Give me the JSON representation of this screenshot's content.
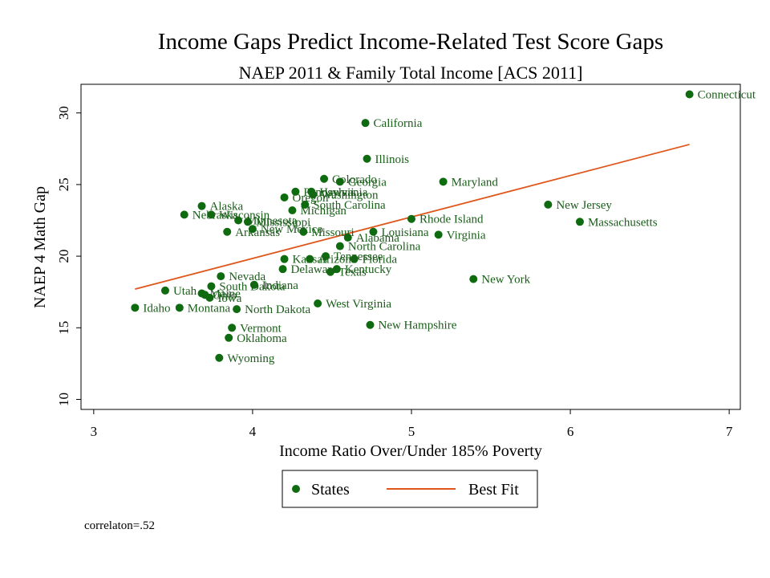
{
  "chart_data": {
    "type": "scatter",
    "title": "Income Gaps Predict Income-Related Test Score Gaps",
    "subtitle": "NAEP 2011 & Family Total Income [ACS 2011]",
    "xlabel": "Income Ratio Over/Under 185% Poverty",
    "ylabel": "NAEP 4 Math Gap",
    "xlim": [
      2.92,
      7.07
    ],
    "ylim": [
      9.3,
      32.0
    ],
    "x_ticks": [
      3,
      4,
      5,
      6,
      7
    ],
    "y_ticks": [
      10,
      15,
      20,
      25,
      30
    ],
    "grid": false,
    "legend_position": "bottom",
    "legend": [
      "States",
      "Best Fit"
    ],
    "colors": {
      "points": "#0f6b0f",
      "fit": "#e0561a",
      "label": "#1a5e1a"
    },
    "series": [
      {
        "name": "States",
        "points": [
          {
            "label": "Connecticut",
            "x": 6.75,
            "y": 31.3
          },
          {
            "label": "California",
            "x": 4.71,
            "y": 29.3
          },
          {
            "label": "Illinois",
            "x": 4.72,
            "y": 26.8
          },
          {
            "label": "Colorado",
            "x": 4.45,
            "y": 25.4
          },
          {
            "label": "Georgia",
            "x": 4.55,
            "y": 25.2
          },
          {
            "label": "Maryland",
            "x": 5.2,
            "y": 25.2
          },
          {
            "label": "Pennsylvania",
            "x": 4.27,
            "y": 24.5
          },
          {
            "label": "Hawaii",
            "x": 4.37,
            "y": 24.5
          },
          {
            "label": "Washington",
            "x": 4.38,
            "y": 24.3
          },
          {
            "label": "Oregon",
            "x": 4.2,
            "y": 24.1
          },
          {
            "label": "South Carolina",
            "x": 4.33,
            "y": 23.6
          },
          {
            "label": "New Jersey",
            "x": 5.86,
            "y": 23.6
          },
          {
            "label": "Alaska",
            "x": 3.68,
            "y": 23.5
          },
          {
            "label": "Michigan",
            "x": 4.25,
            "y": 23.2
          },
          {
            "label": "Wisconsin",
            "x": 3.74,
            "y": 22.9
          },
          {
            "label": "Nebraska",
            "x": 3.57,
            "y": 22.9
          },
          {
            "label": "Rhode Island",
            "x": 5.0,
            "y": 22.6
          },
          {
            "label": "Massachusetts",
            "x": 6.06,
            "y": 22.4
          },
          {
            "label": "Minnesota",
            "x": 3.91,
            "y": 22.5
          },
          {
            "label": "Mississippi",
            "x": 3.97,
            "y": 22.4
          },
          {
            "label": "New Mexico",
            "x": 4.0,
            "y": 21.9
          },
          {
            "label": "Arkansas",
            "x": 3.84,
            "y": 21.7
          },
          {
            "label": "Missouri",
            "x": 4.32,
            "y": 21.7
          },
          {
            "label": "Louisiana",
            "x": 4.76,
            "y": 21.7
          },
          {
            "label": "Alabama",
            "x": 4.6,
            "y": 21.3
          },
          {
            "label": "Virginia",
            "x": 5.17,
            "y": 21.5
          },
          {
            "label": "North Carolina",
            "x": 4.55,
            "y": 20.7
          },
          {
            "label": "Tennessee",
            "x": 4.46,
            "y": 20.0
          },
          {
            "label": "Kansas",
            "x": 4.2,
            "y": 19.8
          },
          {
            "label": "Arizona",
            "x": 4.36,
            "y": 19.8
          },
          {
            "label": "Florida",
            "x": 4.64,
            "y": 19.8
          },
          {
            "label": "Delaware",
            "x": 4.19,
            "y": 19.1
          },
          {
            "label": "Kentucky",
            "x": 4.53,
            "y": 19.1
          },
          {
            "label": "Texas",
            "x": 4.49,
            "y": 18.9
          },
          {
            "label": "Nevada",
            "x": 3.8,
            "y": 18.6
          },
          {
            "label": "New York",
            "x": 5.39,
            "y": 18.4
          },
          {
            "label": "Indiana",
            "x": 4.01,
            "y": 18.0
          },
          {
            "label": "South Dakota",
            "x": 3.74,
            "y": 17.9
          },
          {
            "label": "Utah",
            "x": 3.45,
            "y": 17.6
          },
          {
            "label": "Maine",
            "x": 3.68,
            "y": 17.4
          },
          {
            "label": "Ohio",
            "x": 3.7,
            "y": 17.3
          },
          {
            "label": "Iowa",
            "x": 3.73,
            "y": 17.1
          },
          {
            "label": "West Virginia",
            "x": 4.41,
            "y": 16.7
          },
          {
            "label": "Idaho",
            "x": 3.26,
            "y": 16.4
          },
          {
            "label": "Montana",
            "x": 3.54,
            "y": 16.4
          },
          {
            "label": "North Dakota",
            "x": 3.9,
            "y": 16.3
          },
          {
            "label": "New Hampshire",
            "x": 4.74,
            "y": 15.2
          },
          {
            "label": "Vermont",
            "x": 3.87,
            "y": 15.0
          },
          {
            "label": "Oklahoma",
            "x": 3.85,
            "y": 14.3
          },
          {
            "label": "Wyoming",
            "x": 3.79,
            "y": 12.9
          }
        ]
      },
      {
        "name": "Best Fit",
        "line": [
          {
            "x": 3.26,
            "y": 17.7
          },
          {
            "x": 6.75,
            "y": 27.8
          }
        ]
      }
    ],
    "annotation": "correlaton=.52"
  }
}
